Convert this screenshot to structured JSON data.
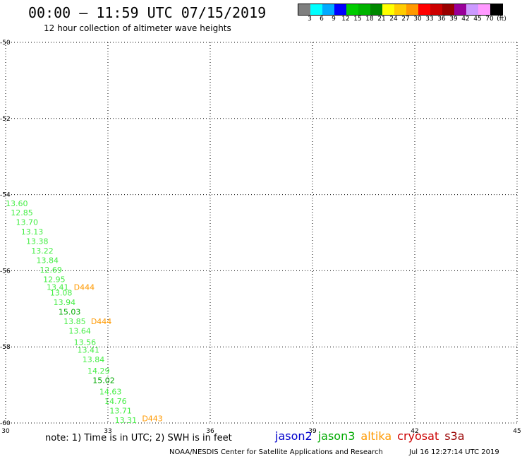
{
  "title": "00:00 – 11:59 UTC 07/15/2019",
  "subtitle": "12 hour collection of altimeter wave heights",
  "colorbar": {
    "colors": [
      "#7f7f7f",
      "#00ffff",
      "#00aaff",
      "#0000ff",
      "#00cc00",
      "#00b300",
      "#008800",
      "#ffff00",
      "#ffcc00",
      "#ff9900",
      "#ff0000",
      "#cc0000",
      "#990000",
      "#990099",
      "#cc99ff",
      "#ff99ff",
      "#000000"
    ],
    "labels": [
      "3",
      "6",
      "9",
      "12",
      "15",
      "18",
      "21",
      "24",
      "27",
      "30",
      "33",
      "36",
      "39",
      "42",
      "45",
      "70",
      "(ft)"
    ]
  },
  "chart_data": {
    "type": "scatter",
    "xlim": [
      30,
      45
    ],
    "ylim": [
      -60,
      -50
    ],
    "x_ticks": [
      "30",
      "33",
      "36",
      "39",
      "42",
      "45"
    ],
    "y_ticks": [
      "-50",
      "-52",
      "-54",
      "-56",
      "-58",
      "-60"
    ],
    "grid": true,
    "series": [
      {
        "color": "#44ee44",
        "points": [
          {
            "lon": 30.0,
            "lat": -54.3,
            "label": "13.60"
          },
          {
            "lon": 30.15,
            "lat": -54.55,
            "label": "12.85"
          },
          {
            "lon": 30.3,
            "lat": -54.8,
            "label": "13.70"
          },
          {
            "lon": 30.45,
            "lat": -55.05,
            "label": "13.13"
          },
          {
            "lon": 30.6,
            "lat": -55.3,
            "label": "13.38"
          },
          {
            "lon": 30.75,
            "lat": -55.55,
            "label": "13.22"
          },
          {
            "lon": 30.9,
            "lat": -55.8,
            "label": "13.84"
          },
          {
            "lon": 31.0,
            "lat": -56.05,
            "label": "12.69"
          },
          {
            "lon": 31.1,
            "lat": -56.3,
            "label": "12.95"
          },
          {
            "lon": 31.2,
            "lat": -56.5,
            "label": "13.41"
          },
          {
            "lon": 31.3,
            "lat": -56.65,
            "label": "13.08"
          },
          {
            "lon": 31.4,
            "lat": -56.9,
            "label": "13.94"
          },
          {
            "lon": 31.7,
            "lat": -57.4,
            "label": "13.85"
          },
          {
            "lon": 31.85,
            "lat": -57.65,
            "label": "13.64"
          },
          {
            "lon": 32.0,
            "lat": -57.95,
            "label": "13.56"
          },
          {
            "lon": 32.1,
            "lat": -58.15,
            "label": "13.41"
          },
          {
            "lon": 32.25,
            "lat": -58.4,
            "label": "13.84"
          },
          {
            "lon": 32.4,
            "lat": -58.7,
            "label": "14.29"
          },
          {
            "lon": 32.75,
            "lat": -59.25,
            "label": "14.63"
          },
          {
            "lon": 32.9,
            "lat": -59.5,
            "label": "14.76"
          },
          {
            "lon": 33.05,
            "lat": -59.75,
            "label": "13.71"
          },
          {
            "lon": 33.2,
            "lat": -60.0,
            "label": "13.31"
          }
        ]
      },
      {
        "color": "#00aa00",
        "points": [
          {
            "lon": 31.55,
            "lat": -57.15,
            "label": "15.03"
          },
          {
            "lon": 32.55,
            "lat": -58.95,
            "label": "15.02"
          }
        ]
      },
      {
        "color": "#ff9900",
        "points": [
          {
            "lon": 32.0,
            "lat": -56.5,
            "label": "D444"
          },
          {
            "lon": 32.5,
            "lat": -57.4,
            "label": "D444"
          },
          {
            "lon": 34.0,
            "lat": -59.95,
            "label": "D443"
          }
        ]
      }
    ]
  },
  "footer": {
    "note": "note:  1) Time is in UTC;  2) SWH is in feet",
    "legend": [
      {
        "name": "jason2",
        "color": "#0000cc"
      },
      {
        "name": "jason3",
        "color": "#00aa00"
      },
      {
        "name": "altika",
        "color": "#ff9900"
      },
      {
        "name": "cryosat",
        "color": "#cc0000"
      },
      {
        "name": "s3a",
        "color": "#990000"
      }
    ],
    "credit": "NOAA/NESDIS Center for Satellite Applications and Research",
    "timestamp": "Jul 16 12:27:14 UTC 2019"
  }
}
